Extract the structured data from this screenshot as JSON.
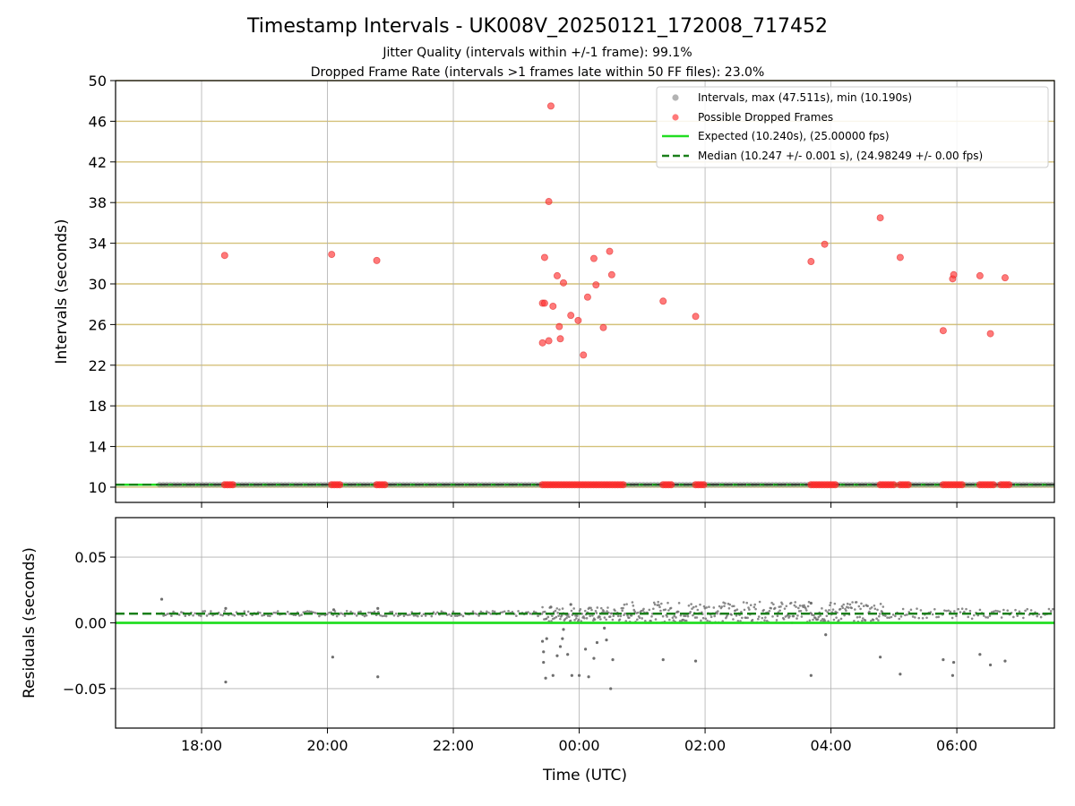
{
  "chart_data": [
    {
      "panel": "intervals",
      "type": "scatter",
      "title": "Timestamp Intervals - UK008V_20250121_172008_717452",
      "subtitle_lines": [
        "Jitter Quality (intervals within +/-1 frame): 99.1%",
        "Dropped Frame Rate (intervals >1 frames late within 50 FF files): 23.0%"
      ],
      "xlabel": "",
      "ylabel": "Intervals (seconds)",
      "xlim": [
        "2025-01-21 16:38",
        "2025-01-22 07:33"
      ],
      "ylim": [
        8.5,
        50
      ],
      "yticks": [
        "10",
        "14",
        "18",
        "22",
        "26",
        "30",
        "34",
        "38",
        "42",
        "46",
        "50"
      ],
      "xticks": [
        "18:00",
        "20:00",
        "22:00",
        "00:00",
        "02:00",
        "04:00",
        "06:00"
      ],
      "grid": true,
      "legend_position": "upper-right",
      "legend": [
        "Intervals, max (47.511s), min (10.190s)",
        "Possible Dropped Frames",
        "Expected (10.240s), (25.00000 fps)",
        "Median (10.247 +/- 0.001 s), (24.98249 +/- 0.00 fps)"
      ],
      "lines": [
        {
          "name": "Expected (10.240s), (25.00000 fps)",
          "y": 10.24,
          "style": "solid",
          "color": "#22dd22"
        },
        {
          "name": "Median (10.247 +/- 0.001 s), (24.98249 +/- 0.00 fps)",
          "y": 10.247,
          "style": "dashed",
          "color": "#1a7f1a"
        }
      ],
      "series": [
        {
          "name": "Intervals, max (47.511s), min (10.190s)",
          "color": "#808080",
          "band": {
            "y": 10.24,
            "x_start": "2025-01-21 17:20",
            "x_end": "2025-01-22 07:33"
          }
        },
        {
          "name": "Possible Dropped Frames",
          "color": "#ff3333",
          "points": [
            {
              "x": "2025-01-21 18:22",
              "y": 32.8
            },
            {
              "x": "2025-01-21 20:04",
              "y": 32.9
            },
            {
              "x": "2025-01-21 20:47",
              "y": 32.3
            },
            {
              "x": "2025-01-21 23:25",
              "y": 24.2
            },
            {
              "x": "2025-01-21 23:25",
              "y": 28.1
            },
            {
              "x": "2025-01-21 23:27",
              "y": 28.1
            },
            {
              "x": "2025-01-21 23:27",
              "y": 32.6
            },
            {
              "x": "2025-01-21 23:31",
              "y": 24.4
            },
            {
              "x": "2025-01-21 23:31",
              "y": 38.1
            },
            {
              "x": "2025-01-21 23:33",
              "y": 47.5
            },
            {
              "x": "2025-01-21 23:35",
              "y": 27.8
            },
            {
              "x": "2025-01-21 23:39",
              "y": 30.8
            },
            {
              "x": "2025-01-21 23:41",
              "y": 25.8
            },
            {
              "x": "2025-01-21 23:42",
              "y": 24.6
            },
            {
              "x": "2025-01-21 23:45",
              "y": 30.1
            },
            {
              "x": "2025-01-21 23:52",
              "y": 26.9
            },
            {
              "x": "2025-01-21 23:59",
              "y": 26.4
            },
            {
              "x": "2025-01-22 00:04",
              "y": 23.0
            },
            {
              "x": "2025-01-22 00:08",
              "y": 28.7
            },
            {
              "x": "2025-01-22 00:14",
              "y": 32.5
            },
            {
              "x": "2025-01-22 00:16",
              "y": 29.9
            },
            {
              "x": "2025-01-22 00:23",
              "y": 25.7
            },
            {
              "x": "2025-01-22 00:29",
              "y": 33.2
            },
            {
              "x": "2025-01-22 00:31",
              "y": 30.9
            },
            {
              "x": "2025-01-22 01:20",
              "y": 28.3
            },
            {
              "x": "2025-01-22 01:51",
              "y": 26.8
            },
            {
              "x": "2025-01-22 03:41",
              "y": 32.2
            },
            {
              "x": "2025-01-22 03:54",
              "y": 33.9
            },
            {
              "x": "2025-01-22 04:47",
              "y": 36.5
            },
            {
              "x": "2025-01-22 05:06",
              "y": 32.6
            },
            {
              "x": "2025-01-22 05:47",
              "y": 25.4
            },
            {
              "x": "2025-01-22 05:56",
              "y": 30.5
            },
            {
              "x": "2025-01-22 05:57",
              "y": 30.9
            },
            {
              "x": "2025-01-22 06:22",
              "y": 30.8
            },
            {
              "x": "2025-01-22 06:32",
              "y": 25.1
            },
            {
              "x": "2025-01-22 06:46",
              "y": 30.6
            }
          ],
          "baseline_clusters_y": 10.24,
          "baseline_clusters": [
            [
              "2025-01-21 18:22",
              "2025-01-21 18:32"
            ],
            [
              "2025-01-21 20:04",
              "2025-01-21 20:14"
            ],
            [
              "2025-01-21 20:47",
              "2025-01-21 20:57"
            ],
            [
              "2025-01-21 23:25",
              "2025-01-22 00:43"
            ],
            [
              "2025-01-22 01:20",
              "2025-01-22 01:30"
            ],
            [
              "2025-01-22 01:51",
              "2025-01-22 02:00"
            ],
            [
              "2025-01-22 03:41",
              "2025-01-22 04:05"
            ],
            [
              "2025-01-22 04:47",
              "2025-01-22 05:00"
            ],
            [
              "2025-01-22 05:06",
              "2025-01-22 05:15"
            ],
            [
              "2025-01-22 05:47",
              "2025-01-22 06:07"
            ],
            [
              "2025-01-22 06:22",
              "2025-01-22 06:36"
            ],
            [
              "2025-01-22 06:42",
              "2025-01-22 06:52"
            ]
          ]
        }
      ]
    },
    {
      "panel": "residuals",
      "type": "scatter",
      "xlabel": "Time (UTC)",
      "ylabel": "Residuals (seconds)",
      "xlim": [
        "2025-01-21 16:38",
        "2025-01-22 07:33"
      ],
      "ylim": [
        -0.08,
        0.08
      ],
      "yticks": [
        "0.05",
        "0.00",
        "−0.05"
      ],
      "xticks": [
        "18:00",
        "20:00",
        "22:00",
        "00:00",
        "02:00",
        "04:00",
        "06:00"
      ],
      "grid": true,
      "lines": [
        {
          "name": "Expected",
          "y": 0.0,
          "style": "solid",
          "color": "#22dd22"
        },
        {
          "name": "Median",
          "y": 0.007,
          "style": "dashed",
          "color": "#1a7f1a"
        }
      ],
      "series": [
        {
          "name": "Residuals",
          "color": "#808080",
          "bands": [
            {
              "x_start": "2025-01-21 17:20",
              "x_end": "2025-01-21 23:25",
              "y_min": 0.005,
              "y_max": 0.009
            },
            {
              "x_start": "2025-01-21 23:25",
              "x_end": "2025-01-22 00:43",
              "y_min": 0.001,
              "y_max": 0.012
            },
            {
              "x_start": "2025-01-22 00:43",
              "x_end": "2025-01-22 04:50",
              "y_min": 0.0,
              "y_max": 0.016
            },
            {
              "x_start": "2025-01-22 04:50",
              "x_end": "2025-01-22 07:33",
              "y_min": 0.003,
              "y_max": 0.011
            }
          ],
          "points": [
            {
              "x": "2025-01-21 17:22",
              "y": 0.018
            },
            {
              "x": "2025-01-21 18:23",
              "y": -0.045
            },
            {
              "x": "2025-01-21 18:23",
              "y": 0.011
            },
            {
              "x": "2025-01-21 20:05",
              "y": -0.026
            },
            {
              "x": "2025-01-21 20:06",
              "y": 0.01
            },
            {
              "x": "2025-01-21 20:48",
              "y": -0.041
            },
            {
              "x": "2025-01-21 20:48",
              "y": 0.011
            },
            {
              "x": "2025-01-21 23:25",
              "y": -0.014
            },
            {
              "x": "2025-01-21 23:26",
              "y": -0.022
            },
            {
              "x": "2025-01-21 23:26",
              "y": -0.03
            },
            {
              "x": "2025-01-21 23:28",
              "y": -0.042
            },
            {
              "x": "2025-01-21 23:29",
              "y": -0.012
            },
            {
              "x": "2025-01-21 23:33",
              "y": 0.012
            },
            {
              "x": "2025-01-21 23:35",
              "y": -0.04
            },
            {
              "x": "2025-01-21 23:39",
              "y": -0.025
            },
            {
              "x": "2025-01-21 23:42",
              "y": -0.018
            },
            {
              "x": "2025-01-21 23:44",
              "y": -0.012
            },
            {
              "x": "2025-01-21 23:45",
              "y": -0.005
            },
            {
              "x": "2025-01-21 23:49",
              "y": -0.024
            },
            {
              "x": "2025-01-21 23:52",
              "y": 0.014
            },
            {
              "x": "2025-01-21 23:53",
              "y": -0.04
            },
            {
              "x": "2025-01-22 00:00",
              "y": -0.04
            },
            {
              "x": "2025-01-22 00:06",
              "y": -0.02
            },
            {
              "x": "2025-01-22 00:09",
              "y": -0.041
            },
            {
              "x": "2025-01-22 00:14",
              "y": -0.027
            },
            {
              "x": "2025-01-22 00:17",
              "y": -0.015
            },
            {
              "x": "2025-01-22 00:24",
              "y": -0.004
            },
            {
              "x": "2025-01-22 00:26",
              "y": -0.013
            },
            {
              "x": "2025-01-22 00:30",
              "y": -0.05
            },
            {
              "x": "2025-01-22 00:32",
              "y": -0.028
            },
            {
              "x": "2025-01-22 01:20",
              "y": -0.028
            },
            {
              "x": "2025-01-22 01:51",
              "y": -0.029
            },
            {
              "x": "2025-01-22 03:41",
              "y": -0.04
            },
            {
              "x": "2025-01-22 03:41",
              "y": 0.015
            },
            {
              "x": "2025-01-22 03:55",
              "y": -0.009
            },
            {
              "x": "2025-01-22 04:47",
              "y": -0.026
            },
            {
              "x": "2025-01-22 05:06",
              "y": -0.039
            },
            {
              "x": "2025-01-22 05:47",
              "y": -0.028
            },
            {
              "x": "2025-01-22 05:56",
              "y": -0.04
            },
            {
              "x": "2025-01-22 05:57",
              "y": -0.03
            },
            {
              "x": "2025-01-22 06:22",
              "y": -0.024
            },
            {
              "x": "2025-01-22 06:32",
              "y": -0.032
            },
            {
              "x": "2025-01-22 06:46",
              "y": -0.029
            }
          ]
        }
      ]
    }
  ]
}
